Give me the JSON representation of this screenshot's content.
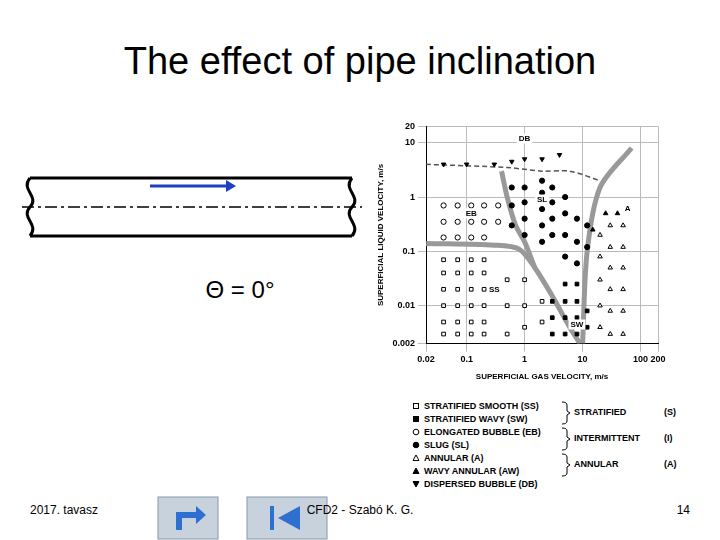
{
  "slide": {
    "title": "The effect of pipe inclination",
    "angle_label": "Θ = 0°",
    "footer": {
      "left": "2017. tavasz",
      "center": "CFD2 - Szabó K. G.",
      "page": "14"
    }
  },
  "chart_data": {
    "type": "scatter",
    "log": true,
    "grid": true,
    "legend": "bottom",
    "x_label": "SUPERFICIAL GAS VELOCITY, m/s",
    "y_label": "SUPERFICIAL LIQUID VELOCITY, m/s",
    "xlim": [
      0.02,
      200
    ],
    "xticks": [
      0.02,
      0.1,
      1,
      10,
      100,
      200
    ],
    "ylim": [
      0.002,
      20
    ],
    "yticks": [
      0.002,
      0.01,
      0.1,
      1,
      10,
      20
    ],
    "series": [
      {
        "name": "STRATIFIED SMOOTH (SS)",
        "marker": "open_square",
        "color": "#000000",
        "x": [
          0.04,
          0.04,
          0.04,
          0.04,
          0.04,
          0.04,
          0.07,
          0.07,
          0.07,
          0.07,
          0.07,
          0.07,
          0.12,
          0.12,
          0.12,
          0.12,
          0.12,
          0.12,
          0.2,
          0.2,
          0.2,
          0.2,
          0.2,
          0.2,
          0.5,
          0.5,
          0.5,
          1,
          1,
          1,
          2,
          2
        ],
        "values": [
          0.003,
          0.005,
          0.01,
          0.02,
          0.04,
          0.07,
          0.003,
          0.005,
          0.01,
          0.02,
          0.04,
          0.07,
          0.003,
          0.005,
          0.01,
          0.02,
          0.04,
          0.07,
          0.003,
          0.005,
          0.01,
          0.02,
          0.04,
          0.07,
          0.003,
          0.01,
          0.03,
          0.004,
          0.01,
          0.03,
          0.005,
          0.012
        ]
      },
      {
        "name": "STRATIFIED WAVY (SW)",
        "marker": "filled_square",
        "color": "#000000",
        "x": [
          3,
          3,
          3,
          5,
          5,
          5,
          5,
          8,
          8,
          8,
          8,
          12,
          12
        ],
        "values": [
          0.003,
          0.006,
          0.012,
          0.003,
          0.006,
          0.012,
          0.025,
          0.003,
          0.006,
          0.012,
          0.025,
          0.004,
          0.008
        ]
      },
      {
        "name": "ELONGATED BUBBLE (EB)",
        "marker": "open_circle",
        "color": "#000000",
        "x": [
          0.04,
          0.04,
          0.04,
          0.07,
          0.07,
          0.07,
          0.12,
          0.12,
          0.12,
          0.2,
          0.2,
          0.2,
          0.35,
          0.35
        ],
        "values": [
          0.18,
          0.35,
          0.7,
          0.18,
          0.35,
          0.7,
          0.18,
          0.35,
          0.7,
          0.18,
          0.35,
          0.7,
          0.35,
          0.7
        ]
      },
      {
        "name": "SLUG (SL)",
        "marker": "filled_circle",
        "color": "#000000",
        "x": [
          0.6,
          0.6,
          0.6,
          1,
          1,
          1,
          1,
          2,
          2,
          2,
          2,
          2,
          3,
          3,
          3,
          3,
          5,
          5,
          5,
          5,
          8,
          8,
          8,
          12,
          12
        ],
        "values": [
          0.3,
          0.7,
          1.5,
          0.2,
          0.4,
          0.8,
          1.5,
          0.15,
          0.3,
          0.6,
          1.2,
          2,
          0.2,
          0.4,
          0.8,
          1.5,
          0.08,
          0.2,
          0.5,
          1,
          0.06,
          0.15,
          0.4,
          0.12,
          0.3
        ]
      },
      {
        "name": "ANNULAR (A)",
        "marker": "open_triangle",
        "color": "#000000",
        "x": [
          20,
          20,
          20,
          20,
          20,
          30,
          30,
          30,
          30,
          30,
          30,
          50,
          50,
          50,
          50,
          50,
          50
        ],
        "values": [
          0.004,
          0.01,
          0.03,
          0.08,
          0.2,
          0.003,
          0.008,
          0.02,
          0.05,
          0.12,
          0.3,
          0.003,
          0.008,
          0.02,
          0.05,
          0.12,
          0.3
        ]
      },
      {
        "name": "WAVY ANNULAR (AW)",
        "marker": "filled_triangle",
        "color": "#000000",
        "x": [
          15,
          25,
          40
        ],
        "values": [
          0.25,
          0.5,
          0.5
        ]
      },
      {
        "name": "DISPERSED BUBBLE (DB)",
        "marker": "filled_triangle_down",
        "color": "#000000",
        "x": [
          0.04,
          0.1,
          0.3,
          0.6,
          1,
          2,
          4
        ],
        "values": [
          4,
          4,
          4,
          4.5,
          5,
          5,
          6
        ]
      }
    ],
    "boundaries": [
      {
        "x": [
          0.02,
          0.3,
          0.8,
          1.5,
          3,
          6,
          9
        ],
        "values": [
          0.14,
          0.13,
          0.11,
          0.05,
          0.015,
          0.004,
          0.002
        ],
        "color": "#999999",
        "line_style": "solid"
      },
      {
        "x": [
          0.4,
          0.5,
          0.7,
          1,
          1.5
        ],
        "values": [
          3,
          1,
          0.3,
          0.15,
          0.05
        ],
        "color": "#999999",
        "line_style": "solid"
      },
      {
        "x": [
          0.02,
          0.5,
          2,
          6,
          20
        ],
        "values": [
          4,
          3.5,
          3,
          3,
          2
        ],
        "color": "#555555",
        "line_style": "dashed"
      },
      {
        "x": [
          70,
          20,
          12,
          10
        ],
        "values": [
          8,
          1.5,
          0.1,
          0.002
        ],
        "color": "#999999",
        "line_style": "solid"
      }
    ],
    "annotations": [
      {
        "text": "DB",
        "x": 1,
        "y": 12
      },
      {
        "text": "EB",
        "x": 0.12,
        "y": 0.5
      },
      {
        "text": "SL",
        "x": 2,
        "y": 0.9
      },
      {
        "text": "SS",
        "x": 0.3,
        "y": 0.02
      },
      {
        "text": "SW",
        "x": 8,
        "y": 0.0045
      },
      {
        "text": "A",
        "x": 60,
        "y": 0.6
      }
    ],
    "legend_groups": [
      {
        "label": "STRATIFIED",
        "abbr": "(S)",
        "members": [
          "STRATIFIED SMOOTH (SS)",
          "STRATIFIED WAVY (SW)"
        ]
      },
      {
        "label": "INTERMITTENT",
        "abbr": "(I)",
        "members": [
          "ELONGATED BUBBLE (EB)",
          "SLUG (SL)"
        ]
      },
      {
        "label": "ANNULAR",
        "abbr": "(A)",
        "members": [
          "ANNULAR (A)",
          "WAVY ANNULAR (AW)"
        ]
      }
    ]
  }
}
